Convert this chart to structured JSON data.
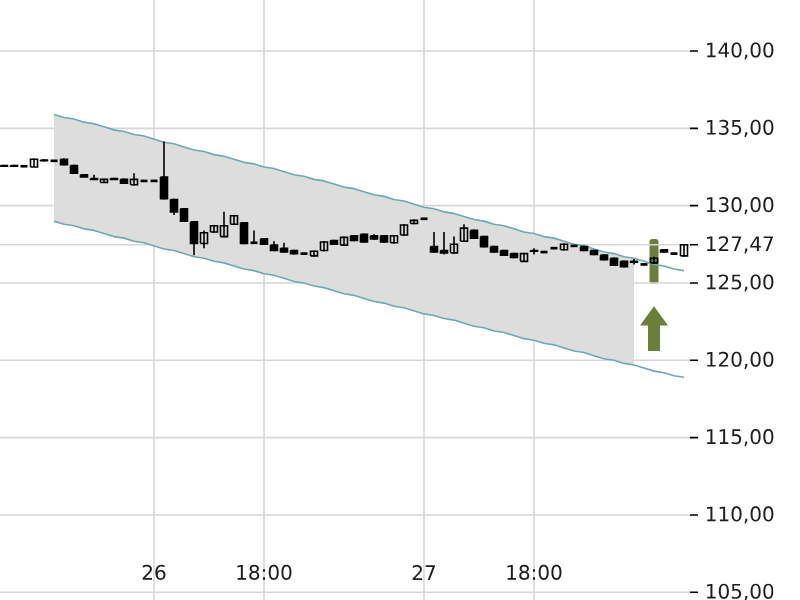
{
  "chart_data": {
    "type": "candlestick",
    "categories": [
      null,
      null,
      null,
      null,
      null,
      null,
      null,
      null,
      null,
      null,
      null,
      null,
      null,
      null,
      null,
      "26",
      null,
      null,
      null,
      null,
      null,
      null,
      null,
      null,
      null,
      null,
      "18:00",
      null,
      null,
      null,
      null,
      null,
      null,
      null,
      null,
      null,
      null,
      null,
      null,
      null,
      null,
      null,
      "27",
      null,
      null,
      null,
      null,
      null,
      null,
      null,
      null,
      null,
      null,
      "18:00",
      null,
      null,
      null,
      null,
      null,
      null,
      null,
      null,
      null,
      null,
      null,
      null,
      null,
      null,
      null
    ],
    "ohlc": [
      [
        132.6,
        132.65,
        132.5,
        132.55
      ],
      [
        132.6,
        132.65,
        132.55,
        132.55
      ],
      [
        132.55,
        132.6,
        132.5,
        132.55
      ],
      [
        132.5,
        133.05,
        132.5,
        133.0
      ],
      [
        132.95,
        133.0,
        132.85,
        132.9
      ],
      [
        132.9,
        132.95,
        132.85,
        132.9
      ],
      [
        133.0,
        133.05,
        132.6,
        132.65
      ],
      [
        132.6,
        132.65,
        132.05,
        132.1
      ],
      [
        132.0,
        132.05,
        131.85,
        131.85
      ],
      [
        131.75,
        132.0,
        131.7,
        131.7
      ],
      [
        131.5,
        131.75,
        131.5,
        131.7
      ],
      [
        131.75,
        131.8,
        131.7,
        131.7
      ],
      [
        131.7,
        131.75,
        131.4,
        131.45
      ],
      [
        131.35,
        132.1,
        131.3,
        131.7
      ],
      [
        131.6,
        131.65,
        131.55,
        131.6
      ],
      [
        131.6,
        131.65,
        131.55,
        131.6
      ],
      [
        131.85,
        134.15,
        130.4,
        130.45
      ],
      [
        130.4,
        130.45,
        129.4,
        129.6
      ],
      [
        129.8,
        129.85,
        128.95,
        129.0
      ],
      [
        128.95,
        129.0,
        126.8,
        127.55
      ],
      [
        127.55,
        128.4,
        127.25,
        128.25
      ],
      [
        128.3,
        128.75,
        128.25,
        128.7
      ],
      [
        128.0,
        129.6,
        127.95,
        128.7
      ],
      [
        128.8,
        129.4,
        128.75,
        129.35
      ],
      [
        128.9,
        128.95,
        127.5,
        127.55
      ],
      [
        127.6,
        128.4,
        127.55,
        127.6
      ],
      [
        127.85,
        127.9,
        127.45,
        127.5
      ],
      [
        127.45,
        127.7,
        127.05,
        127.1
      ],
      [
        127.25,
        127.6,
        126.95,
        127.0
      ],
      [
        127.1,
        127.15,
        126.85,
        126.9
      ],
      [
        126.9,
        126.95,
        126.85,
        126.9
      ],
      [
        126.75,
        127.1,
        126.7,
        127.05
      ],
      [
        127.1,
        127.7,
        127.05,
        127.65
      ],
      [
        127.75,
        127.8,
        127.45,
        127.5
      ],
      [
        127.45,
        128.0,
        127.4,
        127.95
      ],
      [
        128.05,
        128.1,
        127.7,
        127.75
      ],
      [
        128.15,
        128.2,
        127.6,
        127.65
      ],
      [
        128.05,
        128.15,
        127.8,
        127.85
      ],
      [
        128.05,
        128.1,
        127.6,
        127.65
      ],
      [
        127.6,
        128.1,
        127.55,
        128.05
      ],
      [
        128.1,
        128.8,
        128.05,
        128.75
      ],
      [
        128.85,
        129.1,
        128.8,
        129.05
      ],
      [
        129.15,
        129.2,
        129.1,
        129.15
      ],
      [
        127.35,
        128.3,
        126.95,
        127.0
      ],
      [
        127.1,
        128.3,
        126.85,
        126.95
      ],
      [
        126.95,
        128.0,
        126.9,
        127.5
      ],
      [
        127.7,
        128.8,
        127.65,
        128.55
      ],
      [
        128.4,
        128.45,
        127.85,
        127.9
      ],
      [
        128.0,
        128.05,
        127.3,
        127.35
      ],
      [
        127.35,
        127.4,
        126.95,
        127.0
      ],
      [
        127.1,
        127.15,
        126.75,
        126.8
      ],
      [
        126.9,
        126.95,
        126.6,
        126.65
      ],
      [
        126.4,
        126.95,
        126.35,
        126.9
      ],
      [
        127.1,
        127.25,
        126.85,
        127.05
      ],
      [
        127.0,
        127.05,
        126.95,
        127.0
      ],
      [
        127.25,
        127.3,
        127.2,
        127.25
      ],
      [
        127.15,
        127.55,
        127.1,
        127.5
      ],
      [
        127.4,
        127.45,
        127.35,
        127.4
      ],
      [
        127.35,
        127.4,
        127.05,
        127.1
      ],
      [
        127.1,
        127.15,
        126.8,
        126.85
      ],
      [
        126.8,
        126.85,
        126.45,
        126.5
      ],
      [
        126.6,
        126.65,
        126.1,
        126.15
      ],
      [
        126.4,
        126.45,
        126.0,
        126.05
      ],
      [
        126.4,
        126.55,
        126.2,
        126.35
      ],
      [
        126.2,
        126.25,
        126.15,
        126.2
      ],
      [
        126.3,
        126.7,
        126.25,
        126.6
      ],
      [
        127.15,
        127.2,
        126.95,
        127.0
      ],
      [
        126.9,
        126.95,
        126.85,
        126.9
      ],
      [
        126.75,
        127.5,
        126.7,
        127.47
      ]
    ],
    "color": "#000000",
    "series": [
      {
        "type": "line",
        "color": "#6aaab4",
        "values": [
          null,
          null,
          null,
          null,
          null,
          135.9,
          135.7,
          135.6,
          135.4,
          135.3,
          135.1,
          134.9,
          134.8,
          134.6,
          134.5,
          134.3,
          134.1,
          134.0,
          133.8,
          133.6,
          133.5,
          133.3,
          133.2,
          133.0,
          132.8,
          132.7,
          132.5,
          132.4,
          132.2,
          132.0,
          131.9,
          131.7,
          131.6,
          131.4,
          131.2,
          131.1,
          130.9,
          130.7,
          130.6,
          130.4,
          130.3,
          130.1,
          129.9,
          129.8,
          129.6,
          129.5,
          129.3,
          129.1,
          129.0,
          128.8,
          128.7,
          128.5,
          128.3,
          128.2,
          128.0,
          127.9,
          127.7,
          127.5,
          127.4,
          127.2,
          127.0,
          126.9,
          126.7,
          126.6,
          126.4,
          126.2,
          126.1,
          125.9,
          125.8
        ],
        "upper": [
          null,
          null,
          null,
          null,
          null,
          135.9,
          135.7,
          135.6,
          135.4,
          135.3,
          135.1,
          134.9,
          134.8,
          134.6,
          134.5,
          134.3,
          134.1,
          134.0,
          133.8,
          133.6,
          133.5,
          133.3,
          133.2,
          133.0,
          132.8,
          132.7,
          132.5,
          132.4,
          132.2,
          132.0,
          131.9,
          131.7,
          131.6,
          131.4,
          131.2,
          131.1,
          130.9,
          130.7,
          130.6,
          130.4,
          130.3,
          130.1,
          129.9,
          129.8,
          129.6,
          129.5,
          129.3,
          129.1,
          129.0,
          128.8,
          128.7,
          128.5,
          128.3,
          128.2,
          128.0,
          127.9,
          127.7,
          127.5,
          127.4,
          127.2,
          127.0,
          126.9,
          126.7,
          126.6,
          null,
          null,
          null,
          null,
          null
        ],
        "lower": [
          null,
          null,
          null,
          null,
          null,
          129.0,
          128.8,
          128.7,
          128.5,
          128.4,
          128.2,
          128.0,
          127.9,
          127.7,
          127.6,
          127.4,
          127.2,
          127.1,
          126.9,
          126.7,
          126.6,
          126.4,
          126.3,
          126.1,
          125.9,
          125.8,
          125.6,
          125.5,
          125.3,
          125.1,
          125.0,
          124.8,
          124.7,
          124.5,
          124.3,
          124.2,
          124.0,
          123.8,
          123.7,
          123.5,
          123.4,
          123.2,
          123.0,
          122.9,
          122.7,
          122.6,
          122.4,
          122.2,
          122.1,
          121.9,
          121.8,
          121.6,
          121.4,
          121.3,
          121.1,
          121.0,
          120.8,
          120.6,
          120.5,
          120.3,
          120.1,
          120.0,
          119.8,
          119.7,
          null,
          null,
          null,
          null,
          null
        ]
      },
      {
        "type": "line",
        "color": "#6aaab4",
        "values": [
          null,
          null,
          null,
          null,
          null,
          129.0,
          128.8,
          128.7,
          128.5,
          128.4,
          128.2,
          128.0,
          127.9,
          127.7,
          127.6,
          127.4,
          127.2,
          127.1,
          126.9,
          126.7,
          126.6,
          126.4,
          126.3,
          126.1,
          125.9,
          125.8,
          125.6,
          125.5,
          125.3,
          125.1,
          125.0,
          124.8,
          124.7,
          124.5,
          124.3,
          124.2,
          124.0,
          123.8,
          123.7,
          123.5,
          123.4,
          123.2,
          123.0,
          122.9,
          122.7,
          122.6,
          122.4,
          122.2,
          122.1,
          121.9,
          121.8,
          121.6,
          121.4,
          121.3,
          121.1,
          121.0,
          120.8,
          120.6,
          120.5,
          120.3,
          120.1,
          120.0,
          119.8,
          119.7,
          119.5,
          119.3,
          119.2,
          119.0,
          118.9
        ]
      }
    ],
    "ylim": [
      104.5,
      143.3
    ],
    "yticks": [
      {
        "value": 105,
        "label": "105,00"
      },
      {
        "value": 110,
        "label": "110,00"
      },
      {
        "value": 115,
        "label": "115,00"
      },
      {
        "value": 120,
        "label": "120,00"
      },
      {
        "value": 125,
        "label": "125,00"
      },
      {
        "value": 127.47,
        "label": "127,47"
      },
      {
        "value": 130,
        "label": "130,00"
      },
      {
        "value": 135,
        "label": "135,00"
      },
      {
        "value": 140,
        "label": "140,00"
      }
    ],
    "grid": true
  }
}
